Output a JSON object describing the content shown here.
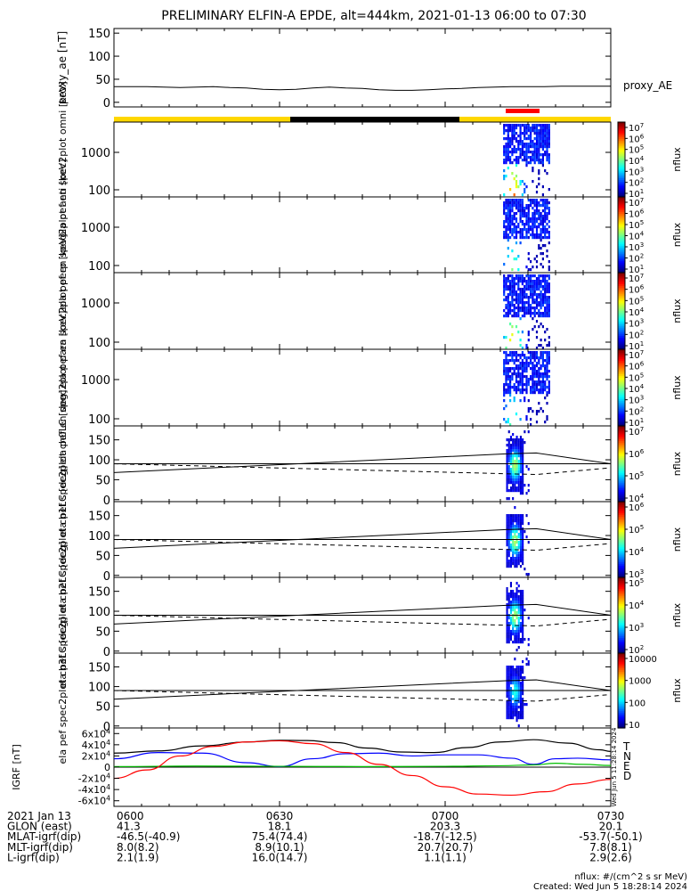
{
  "title": "PRELIMINARY ELFIN-A EPDE, alt=444km, 2021-01-13 06:00 to 07:30",
  "colors": {
    "sunlit": "#ffd700",
    "shadow": "#000000",
    "science_zone": "#ff0000",
    "igrf_t": "#000000",
    "igrf_n": "#0000ff",
    "igrf_e": "#00c000",
    "igrf_d": "#ff0000"
  },
  "x_axis": {
    "ticks": [
      "0600",
      "0630",
      "0700",
      "0730"
    ]
  },
  "ephemeris": {
    "rows": [
      {
        "label": "2021 Jan 13",
        "values": [
          "0600",
          "0630",
          "0700",
          "0730"
        ]
      },
      {
        "label": "GLON (east)",
        "values": [
          "41.3",
          "18.1",
          "203.3",
          "20.1"
        ]
      },
      {
        "label": "MLAT-igrf(dip)",
        "values": [
          "-46.5(-40.9)",
          "75.4(74.4)",
          "-18.7(-12.5)",
          "-53.7(-50.1)"
        ]
      },
      {
        "label": "MLT-igrf(dip)",
        "values": [
          "8.0(8.2)",
          "8.9(10.1)",
          "20.7(20.7)",
          "7.8(8.1)"
        ]
      },
      {
        "label": "L-igrf(dip)",
        "values": [
          "2.1(1.9)",
          "16.0(14.7)",
          "1.1(1.1)",
          "2.9(2.6)"
        ]
      }
    ]
  },
  "footer": {
    "units": "nflux: #/(cm^2 s sr MeV)",
    "created": "Created: Wed Jun  5 18:28:14 2024",
    "side_stamp": "Wed Jun  5 11:28:14 2024"
  },
  "chart_data": [
    {
      "type": "line",
      "ylabel": "proxy_ae [nT]",
      "yticks": [
        "150",
        "100",
        "50",
        "0"
      ],
      "ylim": [
        -10,
        160
      ],
      "legend": "proxy_AE",
      "x_minutes": [
        0,
        3,
        6,
        9,
        12,
        15,
        18,
        21,
        24,
        27,
        30,
        33,
        36,
        39,
        42,
        45,
        48,
        51,
        54,
        57,
        60,
        63,
        66,
        69,
        72,
        75,
        78,
        81,
        84,
        87,
        90
      ],
      "values": [
        34,
        34,
        34,
        33,
        32,
        33,
        34,
        32,
        31,
        28,
        27,
        28,
        31,
        33,
        31,
        30,
        27,
        26,
        26,
        27,
        29,
        30,
        32,
        33,
        34,
        34,
        34,
        35,
        35,
        35,
        35
      ]
    },
    {
      "type": "heatmap",
      "ylabel": "ela pef en spec2plot omni [keV]",
      "yscale": "log",
      "yticks": [
        "1000",
        "100"
      ],
      "cbar_ticks": [
        "10^7",
        "10^6",
        "10^5",
        "10^4",
        "10^3",
        "10^2",
        "10^1"
      ],
      "cbar_label": "nflux",
      "burst_minutes": [
        70.5,
        79
      ]
    },
    {
      "type": "heatmap",
      "ylabel": "ela pef en spec2plot anti [keV]",
      "yscale": "log",
      "yticks": [
        "1000",
        "100"
      ],
      "cbar_ticks": [
        "10^7",
        "10^6",
        "10^5",
        "10^4",
        "10^3",
        "10^2",
        "10^1"
      ],
      "cbar_label": "nflux",
      "burst_minutes": [
        70.5,
        79
      ]
    },
    {
      "type": "heatmap",
      "ylabel": "ela pef en spec2plot perp [keV]",
      "yscale": "log",
      "yticks": [
        "1000",
        "100"
      ],
      "cbar_ticks": [
        "10^7",
        "10^6",
        "10^5",
        "10^4",
        "10^3",
        "10^2",
        "10^1"
      ],
      "cbar_label": "nflux",
      "burst_minutes": [
        70.5,
        79
      ]
    },
    {
      "type": "heatmap",
      "ylabel": "ela pef en spec2plot para [keV]",
      "yscale": "log",
      "yticks": [
        "1000",
        "100"
      ],
      "cbar_ticks": [
        "10^7",
        "10^6",
        "10^5",
        "10^4",
        "10^3",
        "10^2",
        "10^1"
      ],
      "cbar_label": "nflux",
      "burst_minutes": [
        70.5,
        79
      ]
    },
    {
      "type": "heatmap",
      "ylabel": "ela pef spec2plot ch0LC [deg]",
      "yticks": [
        "150",
        "100",
        "50",
        "0"
      ],
      "ylim": [
        -5,
        185
      ],
      "cbar_ticks": [
        "10^7",
        "10^6",
        "10^5",
        "10^4"
      ],
      "cbar_label": "nflux",
      "pitch_90": 90,
      "solid_line": {
        "x_minutes": [
          0,
          71,
          76.5,
          90
        ],
        "values": [
          68,
          115,
          117,
          90
        ]
      },
      "dashed_line": {
        "x_minutes": [
          0,
          71,
          76.5,
          90
        ],
        "values": [
          90,
          65,
          63,
          80
        ]
      }
    },
    {
      "type": "heatmap",
      "ylabel": "ela pef spec2plot ch1LC [deg]",
      "yticks": [
        "150",
        "100",
        "50",
        "0"
      ],
      "ylim": [
        -5,
        185
      ],
      "cbar_ticks": [
        "10^6",
        "10^5",
        "10^4",
        "10^3"
      ],
      "cbar_label": "nflux",
      "pitch_90": 90,
      "solid_line": {
        "x_minutes": [
          0,
          71,
          76.5,
          90
        ],
        "values": [
          68,
          115,
          117,
          90
        ]
      },
      "dashed_line": {
        "x_minutes": [
          0,
          71,
          76.5,
          90
        ],
        "values": [
          90,
          65,
          63,
          80
        ]
      }
    },
    {
      "type": "heatmap",
      "ylabel": "ela pef spec2plot ch2LC [deg]",
      "yticks": [
        "150",
        "100",
        "50",
        "0"
      ],
      "ylim": [
        -5,
        185
      ],
      "cbar_ticks": [
        "10^5",
        "10^4",
        "10^3",
        "10^2"
      ],
      "cbar_label": "nflux",
      "pitch_90": 90,
      "solid_line": {
        "x_minutes": [
          0,
          71,
          76.5,
          90
        ],
        "values": [
          68,
          115,
          117,
          90
        ]
      },
      "dashed_line": {
        "x_minutes": [
          0,
          71,
          76.5,
          90
        ],
        "values": [
          90,
          65,
          63,
          80
        ]
      }
    },
    {
      "type": "heatmap",
      "ylabel": "ela pef spec2plot ch3LC [deg]",
      "yticks": [
        "150",
        "100",
        "50",
        "0"
      ],
      "ylim": [
        -5,
        185
      ],
      "cbar_ticks": [
        "10000",
        "1000",
        "100",
        "10"
      ],
      "cbar_label": "nflux",
      "pitch_90": 90,
      "solid_line": {
        "x_minutes": [
          0,
          71,
          76.5,
          90
        ],
        "values": [
          68,
          115,
          117,
          90
        ]
      },
      "dashed_line": {
        "x_minutes": [
          0,
          71,
          76.5,
          90
        ],
        "values": [
          90,
          65,
          63,
          80
        ]
      }
    },
    {
      "type": "line",
      "ylabel": "IGRF [nT]",
      "yticks": [
        "6x10^4",
        "4x10^4",
        "2x10^4",
        "0",
        "-2x10^4",
        "-4x10^4",
        "-6x10^4"
      ],
      "ylim": [
        -70000,
        70000
      ],
      "series_letters": [
        "T",
        "N",
        "E",
        "D"
      ],
      "series": [
        {
          "name": "T",
          "x_minutes": [
            0,
            8,
            16,
            24,
            30,
            35,
            40,
            46,
            52,
            58,
            64,
            70,
            76,
            82,
            88,
            90
          ],
          "values": [
            25000,
            29000,
            38000,
            45000,
            48000,
            47500,
            44000,
            34000,
            27000,
            26000,
            35000,
            45000,
            49000,
            43000,
            31000,
            28000
          ]
        },
        {
          "name": "N",
          "x_minutes": [
            0,
            8,
            16,
            24,
            30,
            36,
            42,
            48,
            54,
            60,
            66,
            72,
            76,
            80,
            84,
            90
          ],
          "values": [
            15000,
            26000,
            25000,
            8000,
            1000,
            15000,
            24000,
            25000,
            20000,
            22000,
            22000,
            16000,
            5000,
            15000,
            16000,
            13000
          ]
        },
        {
          "name": "E",
          "x_minutes": [
            0,
            15,
            30,
            45,
            60,
            70,
            76,
            80,
            85,
            90
          ],
          "values": [
            1000,
            2000,
            1500,
            1000,
            1500,
            2500,
            4000,
            7000,
            5000,
            3000
          ]
        },
        {
          "name": "D",
          "x_minutes": [
            0,
            6,
            12,
            18,
            24,
            30,
            36,
            42,
            48,
            54,
            60,
            66,
            72,
            78,
            84,
            90
          ],
          "values": [
            -20000,
            -5000,
            20000,
            37000,
            45000,
            47000,
            42000,
            26000,
            5000,
            -15000,
            -35000,
            -48000,
            -50000,
            -44000,
            -30000,
            -22000
          ]
        }
      ]
    }
  ]
}
